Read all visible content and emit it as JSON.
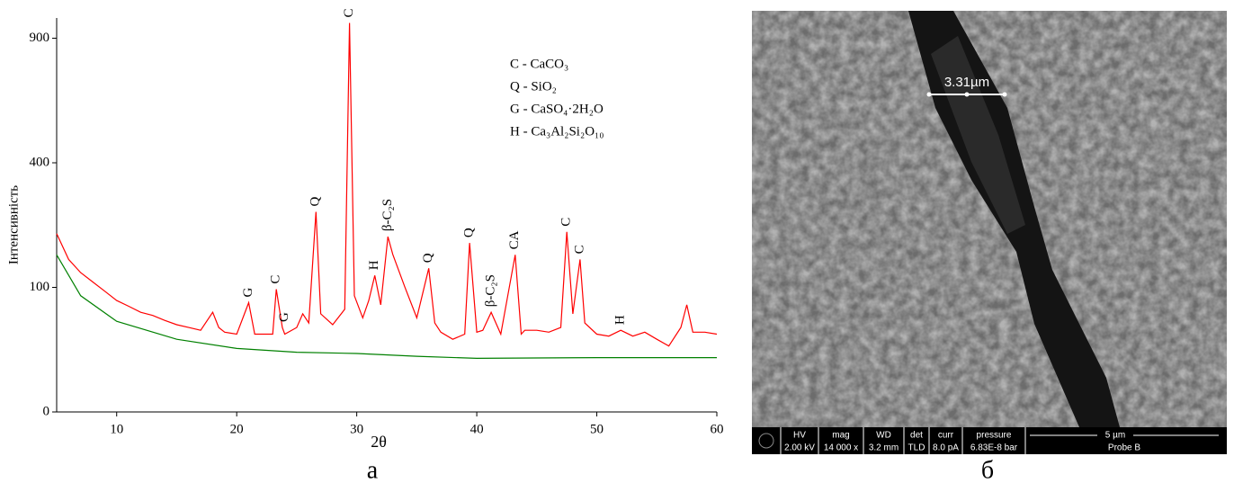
{
  "chart_data": {
    "type": "line",
    "y_scale": "sqrt",
    "x_label": "2θ",
    "y_label": "Інтенсивність",
    "panel_label": "а",
    "xlim": [
      5,
      60
    ],
    "xticks": [
      10,
      20,
      30,
      40,
      50,
      60
    ],
    "ylim": [
      0,
      1000
    ],
    "yticks": [
      0,
      100,
      400,
      900
    ],
    "series": [
      {
        "color": "#ff0000",
        "x": [
          5,
          6,
          7,
          8,
          9,
          10,
          11,
          12,
          13,
          14,
          15,
          16,
          17,
          18,
          18.5,
          19,
          20,
          21,
          21.5,
          22,
          23,
          23.3,
          23.8,
          24,
          25,
          25.5,
          26,
          26.6,
          27,
          28,
          29,
          29.4,
          29.8,
          30.5,
          31,
          31.5,
          32,
          32.6,
          33,
          34,
          35,
          36,
          36.5,
          37,
          38,
          39,
          39.4,
          40,
          40.5,
          41.2,
          42,
          43.2,
          43.7,
          44,
          45,
          46,
          47,
          47.5,
          48,
          48.6,
          49,
          50,
          51,
          52,
          53,
          54,
          55,
          56,
          57,
          57.5,
          58,
          59,
          60
        ],
        "values": [
          205,
          150,
          125,
          109,
          94,
          80,
          72,
          64,
          60,
          54,
          49,
          46,
          43,
          64,
          46,
          41,
          39,
          77,
          39,
          39,
          39,
          97,
          46,
          39,
          46,
          62,
          51,
          258,
          62,
          49,
          68,
          975,
          87,
          57,
          80,
          120,
          74,
          198,
          160,
          101,
          57,
          133,
          51,
          41,
          34,
          39,
          184,
          41,
          43,
          64,
          39,
          159,
          39,
          43,
          43,
          41,
          46,
          209,
          62,
          150,
          51,
          39,
          37,
          43,
          37,
          41,
          34,
          28,
          46,
          74,
          41,
          41,
          39
        ]
      },
      {
        "color": "#008000",
        "x": [
          5,
          7,
          10,
          15,
          20,
          25,
          30,
          35,
          40,
          50,
          60
        ],
        "values": [
          159,
          87,
          53,
          34,
          26,
          23,
          22,
          20,
          18.5,
          19,
          19
        ]
      }
    ],
    "annotations": [
      {
        "x": 21,
        "label": "G"
      },
      {
        "x": 23.3,
        "label": "C"
      },
      {
        "x": 24,
        "label": "G"
      },
      {
        "x": 26.6,
        "label": "Q"
      },
      {
        "x": 29.4,
        "label": "C"
      },
      {
        "x": 31.5,
        "label": "H"
      },
      {
        "x": 32.6,
        "label": "β-C₂S"
      },
      {
        "x": 36,
        "label": "Q"
      },
      {
        "x": 39.4,
        "label": "Q"
      },
      {
        "x": 41.2,
        "label": "β-C₂S"
      },
      {
        "x": 43.2,
        "label": "CA"
      },
      {
        "x": 47.5,
        "label": "C"
      },
      {
        "x": 48.6,
        "label": "C"
      },
      {
        "x": 52,
        "label": "H"
      }
    ],
    "legend": [
      "C - CaCO₃",
      "Q - SiO₂",
      "G - CaSO₄·2H₂O",
      "H - Ca₃Al₂Si₂O₁₀"
    ]
  },
  "image": {
    "panel_label": "б",
    "measurement": "3.31µm",
    "info": [
      [
        "HV",
        "2.00 kV"
      ],
      [
        "mag",
        "14 000 x"
      ],
      [
        "WD",
        "3.2 mm"
      ],
      [
        "det",
        "TLD"
      ],
      [
        "curr",
        "8.0 pA"
      ],
      [
        "pressure",
        "6.83E-8 bar"
      ]
    ],
    "scale_bar": "5 µm",
    "sample": "Probe B"
  }
}
